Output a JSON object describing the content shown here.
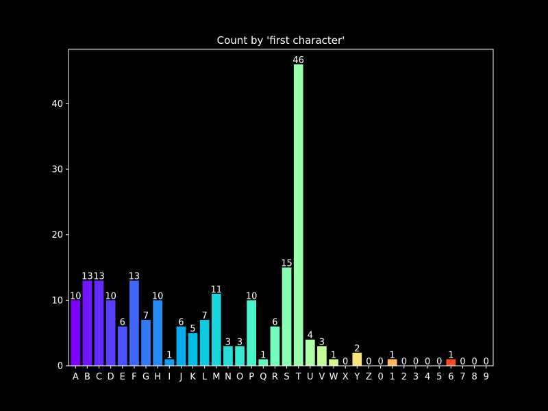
{
  "chart_data": {
    "type": "bar",
    "title": "Count by 'first character'",
    "xlabel": "",
    "ylabel": "",
    "ylim": [
      0,
      48.3
    ],
    "yticks": [
      0,
      10,
      20,
      30,
      40
    ],
    "grid": false,
    "legend": "none",
    "categories": [
      "A",
      "B",
      "C",
      "D",
      "E",
      "F",
      "G",
      "H",
      "I",
      "J",
      "K",
      "L",
      "M",
      "N",
      "O",
      "P",
      "Q",
      "R",
      "S",
      "T",
      "U",
      "V",
      "W",
      "X",
      "Y",
      "Z",
      "0",
      "1",
      "2",
      "3",
      "4",
      "5",
      "6",
      "7",
      "8",
      "9"
    ],
    "values": [
      10,
      13,
      13,
      10,
      6,
      13,
      7,
      10,
      1,
      6,
      5,
      7,
      11,
      3,
      3,
      10,
      1,
      6,
      15,
      46,
      4,
      3,
      1,
      0,
      2,
      0,
      0,
      1,
      0,
      0,
      0,
      0,
      1,
      0,
      0,
      0
    ],
    "colors": [
      "#7f00ff",
      "#7216ff",
      "#652bfe",
      "#5840fd",
      "#4b54fb",
      "#3e68f8",
      "#3279f5",
      "#258af2",
      "#179bee",
      "#0aabea",
      "#00bde5",
      "#0dcae1",
      "#1ad5dc",
      "#27dfd7",
      "#34e8d2",
      "#4bf2c9",
      "#5ff8c2",
      "#72fcbb",
      "#86ffb3",
      "#99ffab",
      "#aefea3",
      "#c1fb9a",
      "#d4f591",
      "#e7ed87",
      "#f9e37d",
      "#ffd673",
      "#ffc868",
      "#ffb85d",
      "#ffa552",
      "#ff9347",
      "#ff803c",
      "#ff6a30",
      "#ff4824",
      "#ff2f18",
      "#ff1b0c",
      "#ff0000"
    ]
  }
}
